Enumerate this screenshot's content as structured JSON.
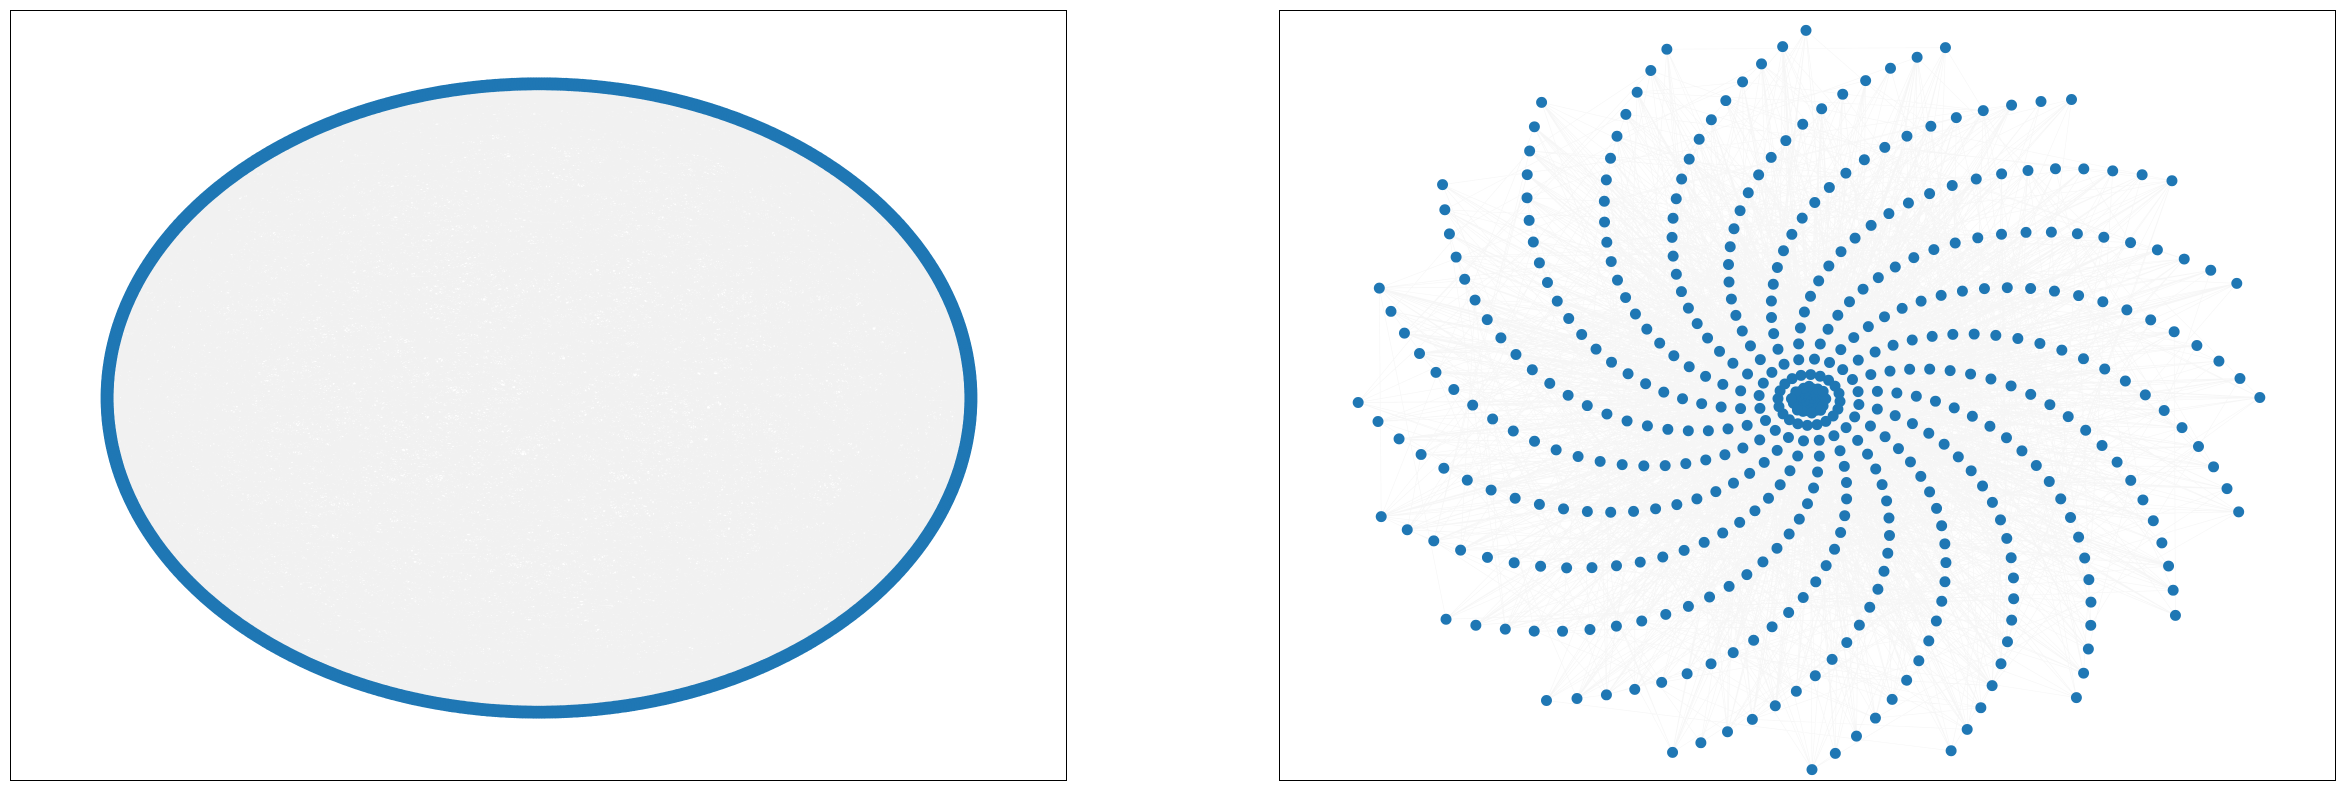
{
  "figure": {
    "panels": [
      {
        "id": "left",
        "layout": "circular",
        "node_color": "#1f77b4",
        "edge_color": "#000000",
        "node_count_est": 1000,
        "edge_density": "very-high"
      },
      {
        "id": "right",
        "layout": "spiral",
        "node_color": "#1f77b4",
        "edge_color": "#000000",
        "arm_count": 20,
        "nodes_per_arm_est": 24,
        "edge_density": "low"
      }
    ]
  }
}
